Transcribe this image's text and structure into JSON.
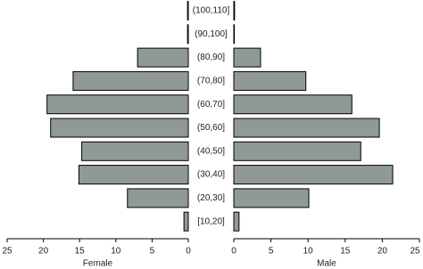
{
  "chart_data": {
    "type": "pyramid",
    "categories": [
      "(100,110]",
      "(90,100]",
      "(80,90]",
      "(70,80]",
      "(60,70]",
      "(50,60]",
      "(40,50]",
      "(30,40]",
      "(20,30]",
      "[10,20]"
    ],
    "series": [
      {
        "name": "Female",
        "color": "#8f9a96",
        "values": [
          0.1,
          0.1,
          7.0,
          15.9,
          19.5,
          19.0,
          14.7,
          15.1,
          8.4,
          0.6
        ]
      },
      {
        "name": "Male",
        "color": "#8f9a96",
        "values": [
          0.1,
          0.05,
          3.6,
          9.7,
          15.9,
          19.6,
          17.1,
          21.4,
          10.1,
          0.7
        ]
      }
    ],
    "xlim": [
      0,
      25
    ],
    "xticks": [
      0,
      5,
      10,
      15,
      20,
      25
    ]
  }
}
